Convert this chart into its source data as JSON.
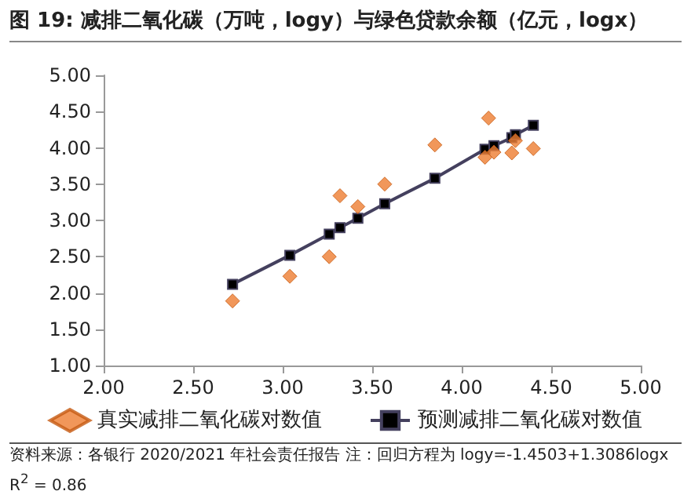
{
  "chart_data": {
    "type": "scatter",
    "title": "图 19: 减排二氧化碳（万吨，logy）与绿色贷款余额（亿元，logx）",
    "annotations": [
      "资料来源：各银行 2020/2021 年社会责任报告 注：回归方程为 logy=-1.4503+1.3086logx R$^{2}$ = 0.86"
    ],
    "series": [
      {
        "name": "真实减排二氧化碳对数值",
        "marker": "diamond",
        "color": "#ed7d31",
        "x": [
          2.72,
          3.04,
          3.26,
          3.32,
          3.42,
          3.57,
          3.85,
          4.13,
          4.15,
          4.18,
          4.28,
          4.3,
          4.4
        ],
        "values": [
          1.89,
          2.23,
          2.5,
          3.34,
          3.19,
          3.5,
          4.04,
          3.87,
          4.41,
          3.94,
          3.93,
          4.1,
          3.99
        ]
      },
      {
        "name": "预测减排二氧化碳对数值",
        "type": "line",
        "marker": "square",
        "color": "#44405e",
        "x": [
          2.72,
          3.04,
          3.26,
          3.32,
          3.42,
          3.57,
          3.85,
          4.13,
          4.18,
          4.28,
          4.3,
          4.4
        ],
        "values": [
          2.12,
          2.52,
          2.81,
          2.9,
          3.03,
          3.23,
          3.58,
          3.98,
          4.03,
          4.14,
          4.18,
          4.31
        ]
      }
    ],
    "xlim": [
      2,
      5
    ],
    "xticks": [
      {
        "value": 2,
        "label": "2.00"
      },
      {
        "value": 2.5,
        "label": "2.50"
      },
      {
        "value": 3,
        "label": "3.00"
      },
      {
        "value": 3.5,
        "label": "3.50"
      },
      {
        "value": 4,
        "label": "4.00"
      },
      {
        "value": 4.5,
        "label": "4.50"
      },
      {
        "value": 5,
        "label": "5.00"
      }
    ],
    "ylim": [
      1,
      5
    ],
    "yticks": [
      {
        "value": 1,
        "label": "1.00"
      },
      {
        "value": 1.5,
        "label": "1.50"
      },
      {
        "value": 2,
        "label": "2.00"
      },
      {
        "value": 2.5,
        "label": "2.50"
      },
      {
        "value": 3,
        "label": "3.00"
      },
      {
        "value": 3.5,
        "label": "3.50"
      },
      {
        "value": 4,
        "label": "4.00"
      },
      {
        "value": 4.5,
        "label": "4.50"
      },
      {
        "value": 5,
        "label": "5.00"
      }
    ],
    "grid": false,
    "legend": "bottom"
  }
}
